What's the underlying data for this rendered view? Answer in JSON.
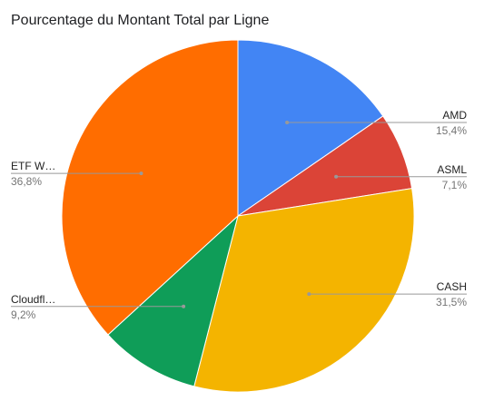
{
  "chart_data": {
    "type": "pie",
    "title": "Pourcentage du Montant Total par Ligne",
    "slices": [
      {
        "label": "AMD",
        "value": 15.4,
        "value_label": "15,4%",
        "color": "#4285f4",
        "side": "right"
      },
      {
        "label": "ASML",
        "value": 7.1,
        "value_label": "7,1%",
        "color": "#db4437",
        "side": "right"
      },
      {
        "label": "CASH",
        "value": 31.5,
        "value_label": "31,5%",
        "color": "#f4b400",
        "side": "right"
      },
      {
        "label": "Cloudfl…",
        "value": 9.2,
        "value_label": "9,2%",
        "color": "#0f9d58",
        "side": "left"
      },
      {
        "label": "ETF W…",
        "value": 36.8,
        "value_label": "36,8%",
        "color": "#ff6d00",
        "side": "left"
      }
    ],
    "start_angle": "12 o'clock",
    "direction": "clockwise",
    "legend": "none"
  }
}
